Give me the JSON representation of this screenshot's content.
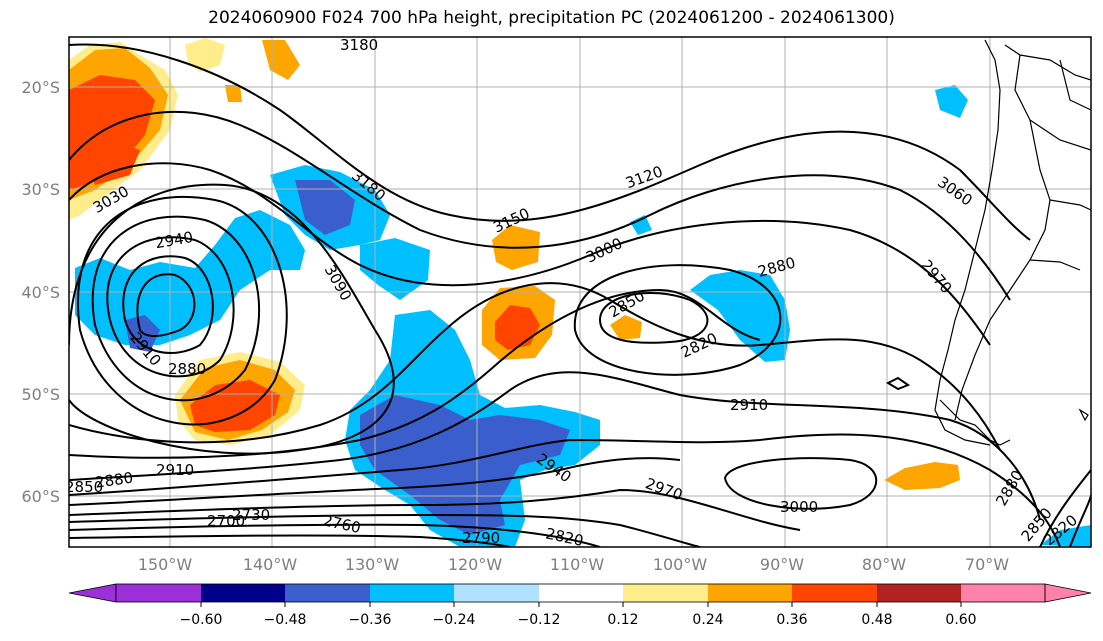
{
  "title": "2024060900 F024 700 hPa height, precipitation PC (2024061200 - 2024061300)",
  "latitude_labels": [
    "20°S",
    "30°S",
    "40°S",
    "50°S",
    "60°S"
  ],
  "longitude_labels": [
    "150°W",
    "140°W",
    "130°W",
    "120°W",
    "110°W",
    "100°W",
    "90°W",
    "80°W",
    "70°W"
  ],
  "contour_labels": [
    "3180",
    "3180",
    "3120",
    "3150",
    "3060",
    "3030",
    "2940",
    "3090",
    "3000",
    "2880",
    "2970",
    "2850",
    "2820",
    "2910",
    "2880",
    "2910",
    "2880",
    "2850",
    "2910",
    "2940",
    "2970",
    "3000",
    "2880",
    "2850",
    "2820",
    "2700",
    "2730",
    "2760",
    "2790",
    "2820"
  ],
  "colorbar": {
    "ticks": [
      "−0.60",
      "−0.48",
      "−0.36",
      "−0.24",
      "−0.12",
      "0.12",
      "0.24",
      "0.36",
      "0.48",
      "0.60"
    ],
    "colors": [
      "#9b30d9",
      "#00008b",
      "#3a5fcd",
      "#00bfff",
      "#b0e2ff",
      "#ffffff",
      "#ffec8b",
      "#ffa500",
      "#ff4500",
      "#b22222",
      "#ff82ab"
    ]
  },
  "colors": {
    "grid": "#b0b0b0",
    "contour": "#000000",
    "coast": "#000000"
  }
}
